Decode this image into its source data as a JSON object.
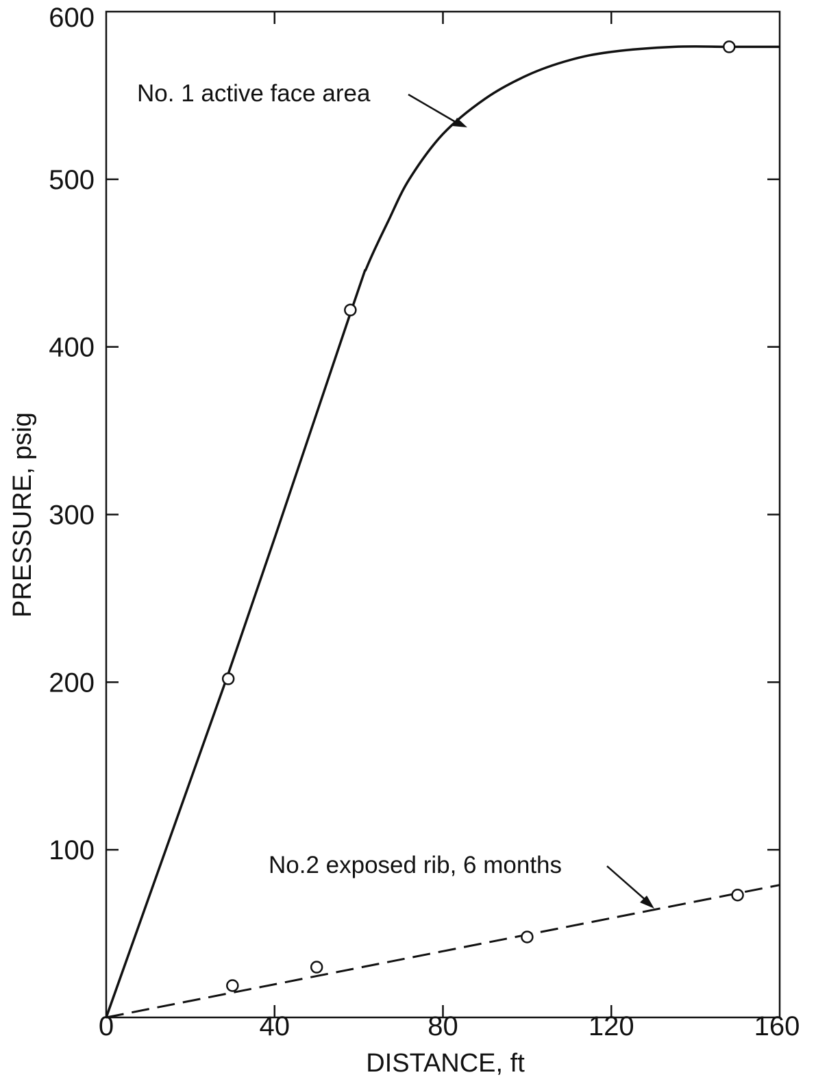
{
  "chart_data": {
    "type": "line",
    "title": "",
    "xlabel": "DISTANCE, ft",
    "ylabel": "PRESSURE, psig",
    "xlim": [
      0,
      160
    ],
    "ylim": [
      0,
      600
    ],
    "x_ticks": [
      0,
      40,
      80,
      120,
      160
    ],
    "y_ticks": [
      100,
      200,
      300,
      400,
      500,
      600
    ],
    "x_tick_labels": [
      "0",
      "40",
      "80",
      "120",
      "160"
    ],
    "y_tick_labels": [
      "100",
      "200",
      "300",
      "400",
      "500",
      "600"
    ],
    "grid": false,
    "series": [
      {
        "name": "No. 1 active face area",
        "style": "solid",
        "points": [
          [
            29,
            202
          ],
          [
            58,
            422
          ],
          [
            148,
            579
          ]
        ],
        "curve": [
          [
            0,
            0
          ],
          [
            29,
            205
          ],
          [
            58,
            420
          ],
          [
            62,
            448
          ],
          [
            67,
            475
          ],
          [
            72,
            500
          ],
          [
            80,
            527
          ],
          [
            90,
            548
          ],
          [
            100,
            562
          ],
          [
            110,
            571
          ],
          [
            120,
            576
          ],
          [
            135,
            579
          ],
          [
            148,
            579
          ],
          [
            160,
            579
          ]
        ]
      },
      {
        "name": "No.2 exposed rib, 6 months",
        "style": "dashed",
        "points": [
          [
            30,
            19
          ],
          [
            50,
            30
          ],
          [
            100,
            48
          ],
          [
            150,
            73
          ]
        ],
        "curve": [
          [
            0,
            0
          ],
          [
            160,
            79
          ]
        ]
      }
    ],
    "annotations": [
      {
        "text": "No. 1 active face area",
        "series": 0
      },
      {
        "text": "No.2 exposed rib, 6 months",
        "series": 1
      }
    ]
  }
}
